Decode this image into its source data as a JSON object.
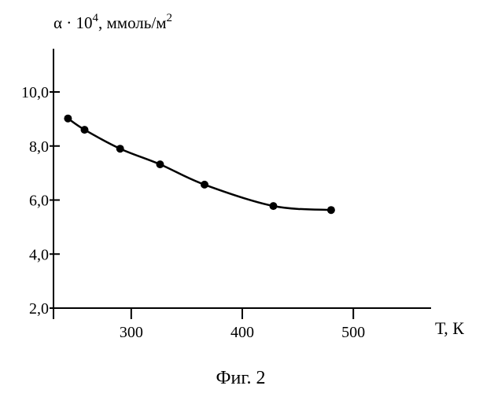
{
  "chart_data": {
    "type": "line",
    "ylabel": {
      "base": "α · 10",
      "exp": "4",
      "unit": ", ммоль/м",
      "unit_exp": "2"
    },
    "xlabel": "Т, К",
    "caption": "Фиг. 2",
    "xlim": [
      230,
      570
    ],
    "ylim": [
      2.0,
      11.6
    ],
    "xticks": [
      300,
      400,
      500
    ],
    "xtick_labels": [
      "300",
      "400",
      "500"
    ],
    "yticks": [
      2.0,
      4.0,
      6.0,
      8.0,
      10.0
    ],
    "ytick_labels": [
      "2,0",
      "4,0",
      "6,0",
      "8,0",
      "10,0"
    ],
    "series": [
      {
        "x": [
          243,
          258,
          290,
          326,
          366,
          428,
          480
        ],
        "y": [
          9.02,
          8.6,
          7.9,
          7.32,
          6.57,
          5.78,
          5.63
        ]
      }
    ],
    "grid": false,
    "legend": "none"
  }
}
